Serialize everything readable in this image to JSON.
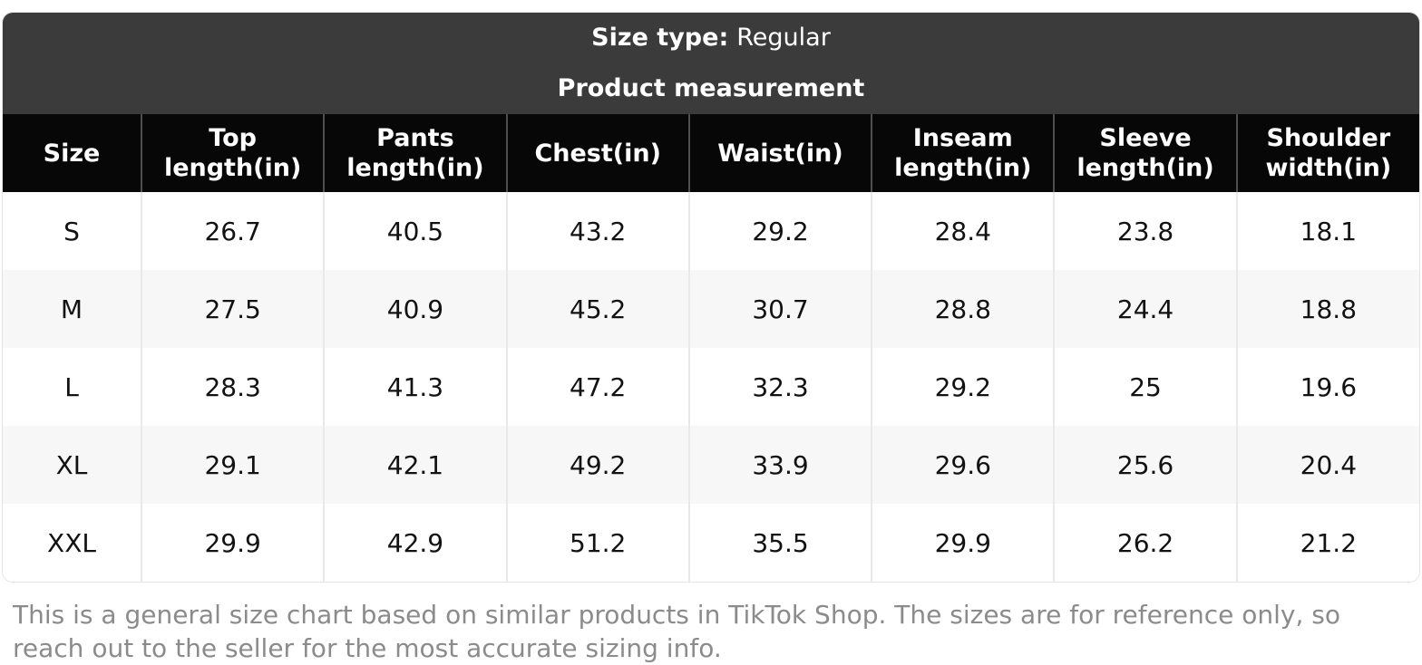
{
  "header": {
    "size_type_label": "Size type:",
    "size_type_value": "Regular",
    "title": "Product measurement"
  },
  "table": {
    "columns": [
      "Size",
      "Top length(in)",
      "Pants length(in)",
      "Chest(in)",
      "Waist(in)",
      "Inseam length(in)",
      "Sleeve length(in)",
      "Shoulder width(in)"
    ],
    "rows": [
      [
        "S",
        "26.7",
        "40.5",
        "43.2",
        "29.2",
        "28.4",
        "23.8",
        "18.1"
      ],
      [
        "M",
        "27.5",
        "40.9",
        "45.2",
        "30.7",
        "28.8",
        "24.4",
        "18.8"
      ],
      [
        "L",
        "28.3",
        "41.3",
        "47.2",
        "32.3",
        "29.2",
        "25",
        "19.6"
      ],
      [
        "XL",
        "29.1",
        "42.1",
        "49.2",
        "33.9",
        "29.6",
        "25.6",
        "20.4"
      ],
      [
        "XXL",
        "29.9",
        "42.9",
        "51.2",
        "35.5",
        "29.9",
        "26.2",
        "21.2"
      ]
    ]
  },
  "footer": {
    "note": "This is a general size chart based on similar products in TikTok Shop. The sizes are for reference only, so reach out to the seller for the most accurate sizing info."
  },
  "colors": {
    "band_background": "#3b3b3b",
    "header_row_background": "#070707",
    "alt_row_background": "#f7f7f7",
    "note_text": "#8b8b8b"
  }
}
